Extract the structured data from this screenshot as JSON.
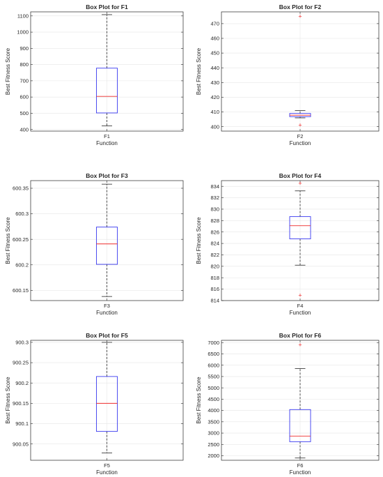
{
  "chart_data": [
    {
      "type": "box",
      "title": "Box Plot for F1",
      "xlabel": "Function",
      "ylabel": "Best Fitness Score",
      "category": "F1",
      "ylim": [
        390,
        1125
      ],
      "yticks": [
        400,
        500,
        600,
        700,
        800,
        900,
        1000,
        1100
      ],
      "ytick_labels": [
        "400",
        "500",
        "600",
        "700",
        "800",
        "900",
        "1000",
        "1100"
      ],
      "stats": {
        "min": 422,
        "q1": 502,
        "median": 604,
        "q3": 778,
        "max": 1108
      },
      "outliers": []
    },
    {
      "type": "box",
      "title": "Box Plot for F2",
      "xlabel": "Function",
      "ylabel": "Best Fitness Score",
      "category": "F2",
      "ylim": [
        397,
        478
      ],
      "yticks": [
        400,
        410,
        420,
        430,
        440,
        450,
        460,
        470
      ],
      "ytick_labels": [
        "400",
        "410",
        "420",
        "430",
        "440",
        "450",
        "460",
        "470"
      ],
      "stats": {
        "min": 406,
        "q1": 406.8,
        "median": 407.8,
        "q3": 409,
        "max": 411
      },
      "outliers": [
        401,
        475
      ]
    },
    {
      "type": "box",
      "title": "Box Plot for F3",
      "xlabel": "Function",
      "ylabel": "Best Fitness Score",
      "category": "F3",
      "ylim": [
        600.13,
        600.365
      ],
      "yticks": [
        600.15,
        600.2,
        600.25,
        600.3,
        600.35
      ],
      "ytick_labels": [
        "600.15",
        "600.2",
        "600.25",
        "600.3",
        "600.35"
      ],
      "stats": {
        "min": 600.138,
        "q1": 600.201,
        "median": 600.241,
        "q3": 600.274,
        "max": 600.358
      },
      "outliers": []
    },
    {
      "type": "box",
      "title": "Box Plot for F4",
      "xlabel": "Function",
      "ylabel": "Best Fitness Score",
      "category": "F4",
      "ylim": [
        814,
        835
      ],
      "yticks": [
        814,
        816,
        818,
        820,
        822,
        824,
        826,
        828,
        830,
        832,
        834
      ],
      "ytick_labels": [
        "814",
        "816",
        "818",
        "820",
        "822",
        "824",
        "826",
        "828",
        "830",
        "832",
        "834"
      ],
      "stats": {
        "min": 820.2,
        "q1": 824.8,
        "median": 827.1,
        "q3": 828.7,
        "max": 833.2
      },
      "outliers": [
        814.9,
        834.5
      ]
    },
    {
      "type": "box",
      "title": "Box Plot for F5",
      "xlabel": "Function",
      "ylabel": "Best Fitness Score",
      "category": "F5",
      "ylim": [
        900.01,
        900.305
      ],
      "yticks": [
        900.05,
        900.1,
        900.15,
        900.2,
        900.25,
        900.3
      ],
      "ytick_labels": [
        "900.05",
        "900.1",
        "900.15",
        "900.2",
        "900.25",
        "900.3"
      ],
      "stats": {
        "min": 900.028,
        "q1": 900.081,
        "median": 900.15,
        "q3": 900.216,
        "max": 900.3
      },
      "outliers": []
    },
    {
      "type": "box",
      "title": "Box Plot for F6",
      "xlabel": "Function",
      "ylabel": "Best Fitness Score",
      "category": "F6",
      "ylim": [
        1800,
        7100
      ],
      "yticks": [
        2000,
        2500,
        3000,
        3500,
        4000,
        4500,
        5000,
        5500,
        6000,
        6500,
        7000
      ],
      "ytick_labels": [
        "2000",
        "2500",
        "3000",
        "3500",
        "4000",
        "4500",
        "5000",
        "5500",
        "6000",
        "6500",
        "7000"
      ],
      "stats": {
        "min": 1900,
        "q1": 2620,
        "median": 2870,
        "q3": 4040,
        "max": 5850
      },
      "outliers": [
        6900
      ]
    }
  ]
}
